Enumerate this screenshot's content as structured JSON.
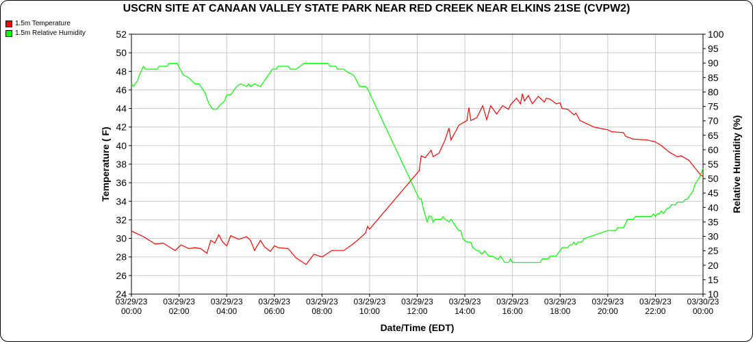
{
  "chart_data": {
    "type": "line",
    "title": "USCRN SITE AT CANAAN VALLEY STATE PARK NEAR RED CREEK NEAR ELKINS 21SE (CVPW2)",
    "xlabel": "Date/Time (EDT)",
    "ylabel": "Temperature ( F)",
    "y2label": "Relative Humidity (%)",
    "ylim": [
      24,
      52
    ],
    "y2lim": [
      10,
      100
    ],
    "yticks": [
      "24",
      "26",
      "28",
      "30",
      "32",
      "34",
      "36",
      "38",
      "40",
      "42",
      "44",
      "46",
      "48",
      "50",
      "52"
    ],
    "y2ticks": [
      "10",
      "15",
      "20",
      "25",
      "30",
      "35",
      "40",
      "45",
      "50",
      "55",
      "60",
      "65",
      "70",
      "75",
      "80",
      "85",
      "90",
      "95",
      "100"
    ],
    "xticks": [
      [
        "03/29/23",
        "00:00"
      ],
      [
        "03/29/23",
        "02:00"
      ],
      [
        "03/29/23",
        "04:00"
      ],
      [
        "03/29/23",
        "06:00"
      ],
      [
        "03/29/23",
        "08:00"
      ],
      [
        "03/29/23",
        "10:00"
      ],
      [
        "03/29/23",
        "12:00"
      ],
      [
        "03/29/23",
        "14:00"
      ],
      [
        "03/29/23",
        "16:00"
      ],
      [
        "03/29/23",
        "18:00"
      ],
      [
        "03/29/23",
        "20:00"
      ],
      [
        "03/29/23",
        "22:00"
      ],
      [
        "03/30/23",
        "00:00"
      ]
    ],
    "xrange": [
      "03/29/23 00:00",
      "03/30/23 00:00"
    ],
    "grid": true,
    "legend_position": "top-left",
    "series": [
      {
        "name": "1.5m Temperature",
        "axis": "left",
        "color": "#ff0000",
        "points": [
          [
            "00:00",
            30.8
          ],
          [
            "00:30",
            30.2
          ],
          [
            "01:00",
            29.4
          ],
          [
            "01:20",
            29.5
          ],
          [
            "01:50",
            28.7
          ],
          [
            "02:05",
            29.3
          ],
          [
            "02:25",
            28.9
          ],
          [
            "02:40",
            29.0
          ],
          [
            "02:55",
            28.9
          ],
          [
            "03:10",
            28.4
          ],
          [
            "03:20",
            29.8
          ],
          [
            "03:30",
            29.5
          ],
          [
            "03:40",
            30.4
          ],
          [
            "03:50",
            29.6
          ],
          [
            "04:00",
            29.2
          ],
          [
            "04:10",
            30.3
          ],
          [
            "04:30",
            29.9
          ],
          [
            "04:50",
            30.2
          ],
          [
            "05:00",
            29.8
          ],
          [
            "05:10",
            28.7
          ],
          [
            "05:25",
            29.8
          ],
          [
            "05:35",
            29.1
          ],
          [
            "05:50",
            28.6
          ],
          [
            "06:00",
            29.2
          ],
          [
            "06:10",
            29.0
          ],
          [
            "06:35",
            28.9
          ],
          [
            "06:55",
            27.9
          ],
          [
            "07:20",
            27.2
          ],
          [
            "07:40",
            28.3
          ],
          [
            "08:00",
            28.0
          ],
          [
            "08:25",
            28.7
          ],
          [
            "08:55",
            28.7
          ],
          [
            "09:15",
            29.3
          ],
          [
            "09:35",
            30.0
          ],
          [
            "09:50",
            30.6
          ],
          [
            "09:55",
            31.3
          ],
          [
            "10:00",
            31.0
          ],
          [
            "12:05",
            37.3
          ],
          [
            "12:10",
            38.9
          ],
          [
            "12:20",
            38.7
          ],
          [
            "12:35",
            39.5
          ],
          [
            "12:40",
            38.8
          ],
          [
            "12:55",
            39.2
          ],
          [
            "13:10",
            40.6
          ],
          [
            "13:20",
            41.9
          ],
          [
            "13:25",
            40.6
          ],
          [
            "13:45",
            42.2
          ],
          [
            "14:05",
            42.7
          ],
          [
            "14:10",
            44.1
          ],
          [
            "14:15",
            42.7
          ],
          [
            "14:30",
            43.0
          ],
          [
            "14:45",
            44.3
          ],
          [
            "14:55",
            42.8
          ],
          [
            "15:05",
            44.3
          ],
          [
            "15:20",
            43.4
          ],
          [
            "15:35",
            44.3
          ],
          [
            "15:50",
            43.9
          ],
          [
            "15:55",
            44.4
          ],
          [
            "16:10",
            45.1
          ],
          [
            "16:20",
            44.5
          ],
          [
            "16:25",
            45.6
          ],
          [
            "16:30",
            44.8
          ],
          [
            "16:40",
            45.4
          ],
          [
            "16:50",
            44.5
          ],
          [
            "17:05",
            45.3
          ],
          [
            "17:20",
            44.7
          ],
          [
            "17:25",
            45.1
          ],
          [
            "17:35",
            45.0
          ],
          [
            "17:50",
            44.5
          ],
          [
            "18:00",
            44.6
          ],
          [
            "18:05",
            44.0
          ],
          [
            "18:20",
            43.9
          ],
          [
            "18:35",
            43.3
          ],
          [
            "18:40",
            43.5
          ],
          [
            "18:50",
            42.7
          ],
          [
            "19:25",
            42.0
          ],
          [
            "20:00",
            41.7
          ],
          [
            "20:10",
            41.5
          ],
          [
            "20:40",
            41.4
          ],
          [
            "20:45",
            41.0
          ],
          [
            "21:05",
            40.7
          ],
          [
            "21:40",
            40.6
          ],
          [
            "22:00",
            40.4
          ],
          [
            "22:15",
            40.0
          ],
          [
            "22:35",
            39.3
          ],
          [
            "22:55",
            38.8
          ],
          [
            "23:05",
            38.9
          ],
          [
            "23:25",
            38.4
          ],
          [
            "23:45",
            37.3
          ],
          [
            "23:55",
            36.8
          ],
          [
            "00:00",
            36.7
          ]
        ]
      },
      {
        "name": "1.5m Relative Humidity",
        "axis": "right",
        "color": "#00ff00",
        "points": [
          [
            "00:00",
            82.8
          ],
          [
            "00:05",
            82.0
          ],
          [
            "00:15",
            83.8
          ],
          [
            "00:20",
            85.8
          ],
          [
            "00:30",
            88.9
          ],
          [
            "00:35",
            87.9
          ],
          [
            "01:05",
            87.9
          ],
          [
            "01:10",
            88.9
          ],
          [
            "01:30",
            88.9
          ],
          [
            "01:35",
            89.9
          ],
          [
            "01:55",
            89.9
          ],
          [
            "02:10",
            86.0
          ],
          [
            "02:25",
            84.9
          ],
          [
            "02:40",
            82.8
          ],
          [
            "02:50",
            82.8
          ],
          [
            "03:05",
            79.9
          ],
          [
            "03:15",
            76.0
          ],
          [
            "03:25",
            74.0
          ],
          [
            "03:35",
            74.0
          ],
          [
            "03:40",
            75.0
          ],
          [
            "03:55",
            77.0
          ],
          [
            "04:00",
            79.0
          ],
          [
            "04:10",
            79.0
          ],
          [
            "04:25",
            81.9
          ],
          [
            "04:35",
            82.8
          ],
          [
            "04:50",
            81.9
          ],
          [
            "04:55",
            82.8
          ],
          [
            "05:00",
            81.9
          ],
          [
            "05:10",
            82.8
          ],
          [
            "05:25",
            81.9
          ],
          [
            "05:55",
            87.9
          ],
          [
            "06:05",
            87.9
          ],
          [
            "06:10",
            88.9
          ],
          [
            "06:35",
            88.9
          ],
          [
            "06:40",
            87.9
          ],
          [
            "06:55",
            87.9
          ],
          [
            "07:15",
            89.9
          ],
          [
            "08:15",
            89.9
          ],
          [
            "08:20",
            88.9
          ],
          [
            "08:35",
            88.9
          ],
          [
            "08:40",
            87.9
          ],
          [
            "08:55",
            87.9
          ],
          [
            "09:05",
            86.8
          ],
          [
            "09:20",
            85.8
          ],
          [
            "09:35",
            81.9
          ],
          [
            "09:50",
            81.9
          ],
          [
            "09:55",
            81.1
          ],
          [
            "12:05",
            43.0
          ],
          [
            "12:10",
            43.0
          ],
          [
            "12:15",
            39.8
          ],
          [
            "12:25",
            35.0
          ],
          [
            "12:30",
            37.0
          ],
          [
            "12:35",
            37.0
          ],
          [
            "12:40",
            35.0
          ],
          [
            "12:45",
            35.9
          ],
          [
            "13:00",
            35.9
          ],
          [
            "13:05",
            36.8
          ],
          [
            "13:10",
            35.9
          ],
          [
            "13:20",
            35.0
          ],
          [
            "13:25",
            35.9
          ],
          [
            "13:35",
            33.9
          ],
          [
            "13:45",
            32.0
          ],
          [
            "13:50",
            32.0
          ],
          [
            "13:55",
            29.2
          ],
          [
            "14:05",
            28.0
          ],
          [
            "14:15",
            28.0
          ],
          [
            "14:20",
            26.1
          ],
          [
            "14:30",
            25.1
          ],
          [
            "14:35",
            25.1
          ],
          [
            "14:40",
            24.1
          ],
          [
            "14:45",
            24.1
          ],
          [
            "14:50",
            25.0
          ],
          [
            "15:00",
            23.2
          ],
          [
            "15:10",
            23.2
          ],
          [
            "15:20",
            22.2
          ],
          [
            "15:25",
            22.2
          ],
          [
            "15:30",
            23.2
          ],
          [
            "15:40",
            21.0
          ],
          [
            "15:50",
            21.0
          ],
          [
            "15:55",
            22.2
          ],
          [
            "16:00",
            21.0
          ],
          [
            "17:10",
            21.0
          ],
          [
            "17:15",
            22.2
          ],
          [
            "17:30",
            22.2
          ],
          [
            "17:35",
            23.2
          ],
          [
            "17:50",
            23.2
          ],
          [
            "18:05",
            26.1
          ],
          [
            "18:20",
            26.1
          ],
          [
            "18:25",
            27.1
          ],
          [
            "18:30",
            27.1
          ],
          [
            "18:35",
            28.0
          ],
          [
            "18:40",
            27.1
          ],
          [
            "18:45",
            28.0
          ],
          [
            "18:55",
            28.0
          ],
          [
            "19:00",
            29.2
          ],
          [
            "20:00",
            32.0
          ],
          [
            "20:20",
            32.0
          ],
          [
            "20:25",
            33.0
          ],
          [
            "20:40",
            33.0
          ],
          [
            "20:50",
            35.9
          ],
          [
            "21:05",
            35.9
          ],
          [
            "21:10",
            36.9
          ],
          [
            "21:50",
            36.9
          ],
          [
            "21:55",
            37.8
          ],
          [
            "22:00",
            36.9
          ],
          [
            "22:05",
            37.8
          ],
          [
            "22:10",
            37.8
          ],
          [
            "22:15",
            38.8
          ],
          [
            "22:20",
            37.9
          ],
          [
            "22:30",
            39.8
          ],
          [
            "22:35",
            39.8
          ],
          [
            "22:40",
            40.9
          ],
          [
            "22:50",
            40.9
          ],
          [
            "22:55",
            41.8
          ],
          [
            "23:10",
            41.8
          ],
          [
            "23:15",
            42.8
          ],
          [
            "23:20",
            42.8
          ],
          [
            "23:35",
            45.8
          ],
          [
            "23:40",
            48.1
          ],
          [
            "23:50",
            50.1
          ],
          [
            "00:00",
            53.5
          ]
        ]
      }
    ]
  }
}
